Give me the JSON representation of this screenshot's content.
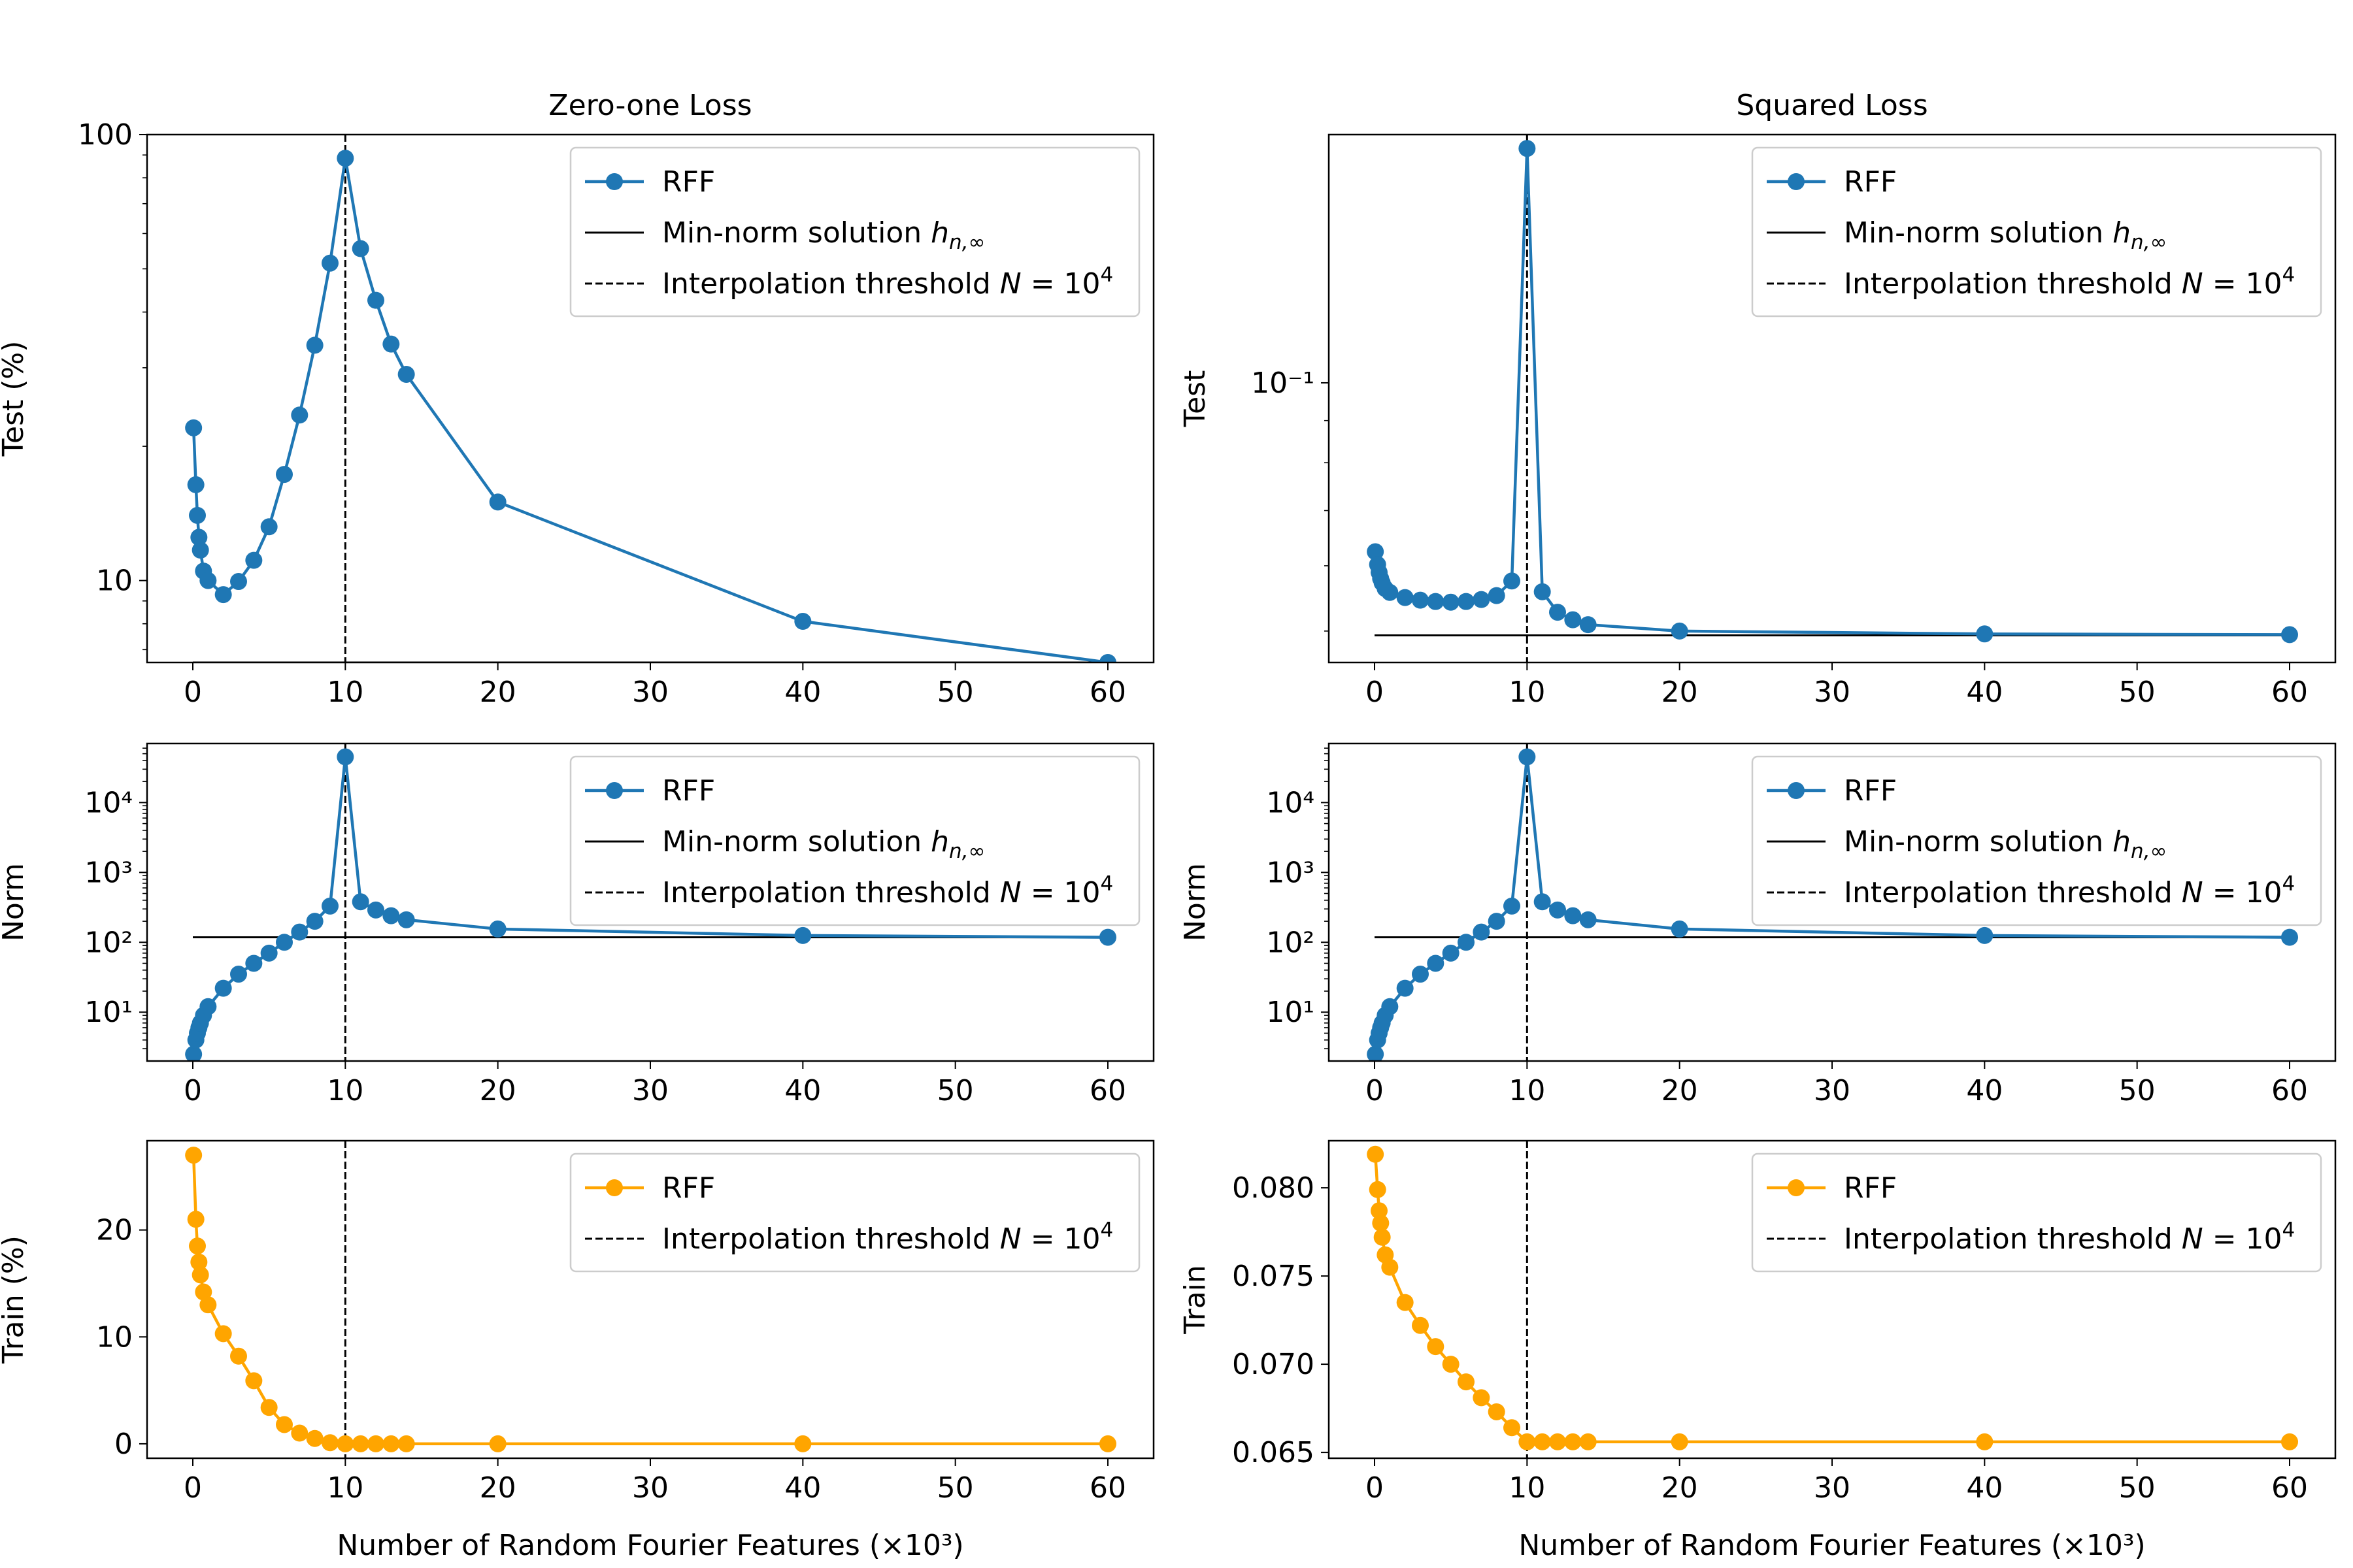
{
  "figure": {
    "xlabel": "Number of Random Fourier Features (×10³)",
    "colors": {
      "rff_test": "#1f77b4",
      "rff_train": "#ffa500",
      "min_norm": "#000000",
      "threshold": "#000000"
    }
  },
  "chart_data": [
    {
      "id": "zero-one-test",
      "type": "line",
      "title": "Zero-one Loss",
      "ylabel": "Test (%)",
      "xlabel": "",
      "yscale": "log",
      "xlim": [
        -3,
        63
      ],
      "ylim": [
        6.55,
        100
      ],
      "xticks": [
        0,
        10,
        20,
        30,
        40,
        50,
        60
      ],
      "yticks": [
        {
          "value": 10,
          "label": "10"
        },
        {
          "value": 100,
          "label": "100"
        }
      ],
      "legend_placement": "top-right",
      "series": [
        {
          "name": "RFF",
          "kind": "line-marker",
          "color": "#1f77b4",
          "x": [
            0.05,
            0.2,
            0.3,
            0.4,
            0.5,
            0.7,
            1,
            2,
            3,
            4,
            5,
            6,
            7,
            8,
            9,
            10,
            11,
            12,
            13,
            14,
            20,
            40,
            60
          ],
          "y": [
            22,
            16.4,
            14,
            12.5,
            11.7,
            10.5,
            10,
            9.3,
            9.95,
            11.1,
            13.2,
            17.3,
            23.5,
            33.7,
            51.5,
            88.5,
            55.5,
            42.5,
            33.9,
            29,
            15,
            8.1,
            6.55
          ]
        },
        {
          "name": "Min-norm solution h_{n,∞}",
          "kind": "hline",
          "color": "#000000",
          "y": 6.55,
          "x": [
            0,
            60
          ]
        },
        {
          "name": "Interpolation threshold N = 10^4",
          "kind": "vline",
          "color": "#000000",
          "x": 10
        }
      ]
    },
    {
      "id": "squared-test",
      "type": "line",
      "title": "Squared Loss",
      "ylabel": "Test",
      "xlabel": "",
      "yscale": "log",
      "xlim": [
        -3,
        63
      ],
      "ylim": [
        0.0458,
        0.2
      ],
      "xticks": [
        0,
        10,
        20,
        30,
        40,
        50,
        60
      ],
      "yticks": [
        {
          "value": 0.1,
          "label": "10⁻¹"
        }
      ],
      "minor_yticks": [
        0.05,
        0.06,
        0.07,
        0.08,
        0.09
      ],
      "legend_placement": "top-right",
      "series": [
        {
          "name": "RFF",
          "kind": "line-marker",
          "color": "#1f77b4",
          "x": [
            0.05,
            0.2,
            0.3,
            0.4,
            0.5,
            0.7,
            1,
            2,
            3,
            4,
            5,
            6,
            7,
            8,
            9,
            10,
            11,
            12,
            13,
            14,
            20,
            40,
            60
          ],
          "y": [
            0.0624,
            0.0602,
            0.0589,
            0.0579,
            0.0572,
            0.0563,
            0.0557,
            0.0549,
            0.0545,
            0.0543,
            0.0542,
            0.0543,
            0.0546,
            0.0552,
            0.0575,
            0.1924,
            0.0558,
            0.0527,
            0.0516,
            0.0509,
            0.05,
            0.0496,
            0.0495
          ]
        },
        {
          "name": "Min-norm solution h_{n,∞}",
          "kind": "hline",
          "color": "#000000",
          "y": 0.0494,
          "x": [
            0,
            60
          ]
        },
        {
          "name": "Interpolation threshold N = 10^4",
          "kind": "vline",
          "color": "#000000",
          "x": 10
        }
      ]
    },
    {
      "id": "zero-one-norm",
      "type": "line",
      "title": "",
      "ylabel": "Norm",
      "xlabel": "",
      "yscale": "log",
      "xlim": [
        -3,
        63
      ],
      "ylim": [
        2.0,
        70000
      ],
      "xticks": [
        0,
        10,
        20,
        30,
        40,
        50,
        60
      ],
      "yticks": [
        {
          "value": 10,
          "label": "10¹"
        },
        {
          "value": 100,
          "label": "10²"
        },
        {
          "value": 1000,
          "label": "10³"
        },
        {
          "value": 10000,
          "label": "10⁴"
        }
      ],
      "legend_placement": "top-right",
      "series": [
        {
          "name": "RFF",
          "kind": "line-marker",
          "color": "#1f77b4",
          "x": [
            0.05,
            0.2,
            0.3,
            0.4,
            0.5,
            0.7,
            1,
            2,
            3,
            4,
            5,
            6,
            7,
            8,
            9,
            10,
            11,
            12,
            13,
            14,
            20,
            40,
            60
          ],
          "y": [
            2.5,
            4,
            5,
            6,
            7,
            9,
            12,
            22,
            35,
            50,
            70,
            100,
            140,
            200,
            330,
            45000,
            380,
            290,
            240,
            210,
            155,
            125,
            118
          ]
        },
        {
          "name": "Min-norm solution h_{n,∞}",
          "kind": "hline",
          "color": "#000000",
          "y": 118,
          "x": [
            0,
            60
          ]
        },
        {
          "name": "Interpolation threshold N = 10^4",
          "kind": "vline",
          "color": "#000000",
          "x": 10
        }
      ]
    },
    {
      "id": "squared-norm",
      "type": "line",
      "title": "",
      "ylabel": "Norm",
      "xlabel": "",
      "yscale": "log",
      "xlim": [
        -3,
        63
      ],
      "ylim": [
        2.0,
        70000
      ],
      "xticks": [
        0,
        10,
        20,
        30,
        40,
        50,
        60
      ],
      "yticks": [
        {
          "value": 10,
          "label": "10¹"
        },
        {
          "value": 100,
          "label": "10²"
        },
        {
          "value": 1000,
          "label": "10³"
        },
        {
          "value": 10000,
          "label": "10⁴"
        }
      ],
      "legend_placement": "top-right",
      "series": [
        {
          "name": "RFF",
          "kind": "line-marker",
          "color": "#1f77b4",
          "x": [
            0.05,
            0.2,
            0.3,
            0.4,
            0.5,
            0.7,
            1,
            2,
            3,
            4,
            5,
            6,
            7,
            8,
            9,
            10,
            11,
            12,
            13,
            14,
            20,
            40,
            60
          ],
          "y": [
            2.5,
            4,
            5,
            6,
            7,
            9,
            12,
            22,
            35,
            50,
            70,
            100,
            140,
            200,
            330,
            45000,
            380,
            290,
            240,
            210,
            155,
            125,
            118
          ]
        },
        {
          "name": "Min-norm solution h_{n,∞}",
          "kind": "hline",
          "color": "#000000",
          "y": 118,
          "x": [
            0,
            60
          ]
        },
        {
          "name": "Interpolation threshold N = 10^4",
          "kind": "vline",
          "color": "#000000",
          "x": 10
        }
      ]
    },
    {
      "id": "zero-one-train",
      "type": "line",
      "title": "",
      "ylabel": "Train (%)",
      "xlabel": "Number of Random Fourier Features (×10³)",
      "yscale": "linear",
      "xlim": [
        -3,
        63
      ],
      "ylim": [
        -1.35,
        28.35
      ],
      "xticks": [
        0,
        10,
        20,
        30,
        40,
        50,
        60
      ],
      "yticks": [
        {
          "value": 0,
          "label": "0"
        },
        {
          "value": 10,
          "label": "10"
        },
        {
          "value": 20,
          "label": "20"
        }
      ],
      "legend_placement": "top-right",
      "series": [
        {
          "name": "RFF",
          "kind": "line-marker",
          "color": "#ffa500",
          "x": [
            0.05,
            0.2,
            0.3,
            0.4,
            0.5,
            0.7,
            1,
            2,
            3,
            4,
            5,
            6,
            7,
            8,
            9,
            10,
            11,
            12,
            13,
            14,
            20,
            40,
            60
          ],
          "y": [
            27,
            21,
            18.5,
            17,
            15.8,
            14.2,
            13,
            10.3,
            8.2,
            5.9,
            3.4,
            1.8,
            1.0,
            0.5,
            0.1,
            0,
            0,
            0,
            0,
            0,
            0,
            0,
            0
          ]
        },
        {
          "name": "Interpolation threshold N = 10^4",
          "kind": "vline",
          "color": "#000000",
          "x": 10
        }
      ]
    },
    {
      "id": "squared-train",
      "type": "line",
      "title": "",
      "ylabel": "Train",
      "xlabel": "Number of Random Fourier Features (×10³)",
      "yscale": "linear",
      "xlim": [
        -3,
        63
      ],
      "ylim": [
        0.06467,
        0.08267
      ],
      "xticks": [
        0,
        10,
        20,
        30,
        40,
        50,
        60
      ],
      "yticks": [
        {
          "value": 0.065,
          "label": "0.065"
        },
        {
          "value": 0.07,
          "label": "0.070"
        },
        {
          "value": 0.075,
          "label": "0.075"
        },
        {
          "value": 0.08,
          "label": "0.080"
        }
      ],
      "legend_placement": "top-right",
      "series": [
        {
          "name": "RFF",
          "kind": "line-marker",
          "color": "#ffa500",
          "x": [
            0.05,
            0.2,
            0.3,
            0.4,
            0.5,
            0.7,
            1,
            2,
            3,
            4,
            5,
            6,
            7,
            8,
            9,
            10,
            11,
            12,
            13,
            14,
            20,
            40,
            60
          ],
          "y": [
            0.0819,
            0.0799,
            0.0787,
            0.078,
            0.0772,
            0.0762,
            0.0755,
            0.0735,
            0.0722,
            0.071,
            0.07,
            0.069,
            0.0681,
            0.0673,
            0.0664,
            0.0656,
            0.0656,
            0.0656,
            0.0656,
            0.0656,
            0.0656,
            0.0656,
            0.0656
          ]
        },
        {
          "name": "Interpolation threshold N = 10^4",
          "kind": "vline",
          "color": "#000000",
          "x": 10
        }
      ]
    }
  ]
}
